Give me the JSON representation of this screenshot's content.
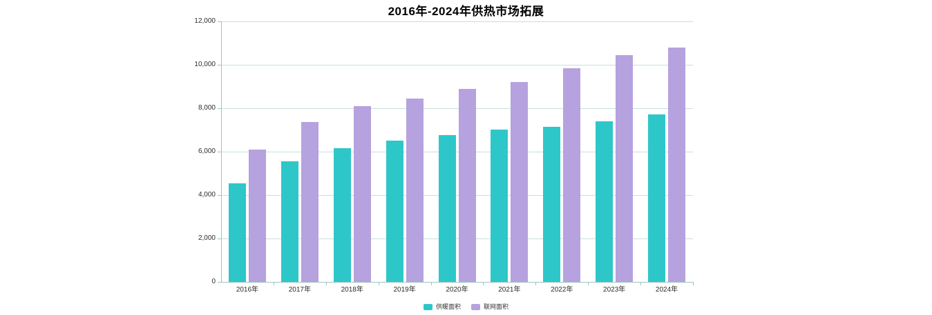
{
  "page": {
    "background": "#ffffff"
  },
  "chart_data": {
    "type": "bar",
    "title": "2016年-2024年供热市场拓展",
    "categories": [
      "2016年",
      "2017年",
      "2018年",
      "2019年",
      "2020年",
      "2021年",
      "2022年",
      "2023年",
      "2024年"
    ],
    "series": [
      {
        "name": "供暖面积",
        "color": "#2EC7C9",
        "values": [
          4550,
          5550,
          6150,
          6500,
          6750,
          7000,
          7150,
          7400,
          7700
        ]
      },
      {
        "name": "联网面积",
        "color": "#B6A2DE",
        "values": [
          6100,
          7350,
          8100,
          8450,
          8900,
          9200,
          9850,
          10450,
          10800
        ]
      }
    ],
    "xlabel": "",
    "ylabel": "",
    "ylim": [
      0,
      12000
    ],
    "yticks": [
      0,
      2000,
      4000,
      6000,
      8000,
      10000,
      12000
    ],
    "yticklabels": [
      "0",
      "2,000",
      "4,000",
      "6,000",
      "8,000",
      "10,000",
      "12,000"
    ],
    "grid": true,
    "legend_position": "bottom",
    "colors": {
      "axis_line": "#9CC3C1",
      "grid_line": "#C6DFE0",
      "tick_label": "#2B2B2B",
      "title_text": "#000000",
      "legend_text": "#333333"
    }
  }
}
